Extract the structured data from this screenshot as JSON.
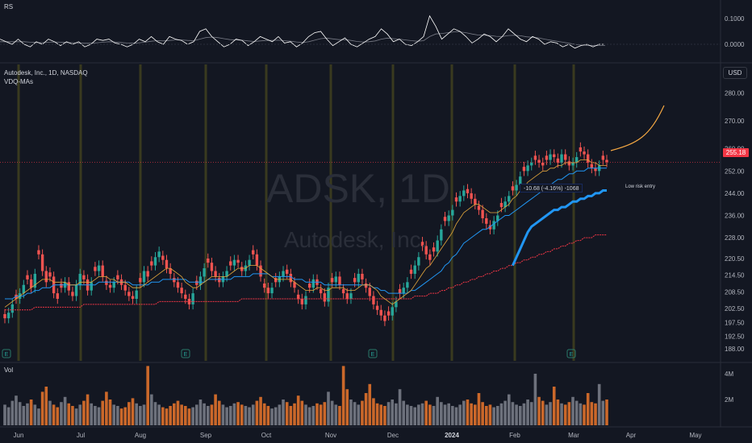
{
  "rs_pane": {
    "title": "RS",
    "ticks": [
      "0.1000",
      "0.0000"
    ],
    "values": [
      0.02,
      0.01,
      0.0,
      0.02,
      0.0,
      -0.01,
      0.01,
      0.0,
      0.02,
      0.01,
      -0.005,
      0.01,
      0.0,
      0.01,
      -0.01,
      0.0,
      0.02,
      0.015,
      0.02,
      0.005,
      0.0,
      -0.01,
      0.0,
      0.02,
      0.01,
      0.03,
      0.01,
      0.0,
      0.03,
      0.02,
      0.015,
      0.0,
      0.01,
      0.05,
      0.06,
      0.03,
      0.01,
      -0.01,
      0.0,
      0.02,
      0.015,
      -0.005,
      0.01,
      0.03,
      0.02,
      0.01,
      0.03,
      0.005,
      0.01,
      -0.01,
      0.005,
      0.03,
      0.045,
      0.05,
      0.02,
      -0.005,
      0.01,
      0.025,
      0.0,
      -0.01,
      0.005,
      0.02,
      0.03,
      0.06,
      0.04,
      0.01,
      0.02,
      0.0,
      -0.005,
      0.01,
      0.03,
      0.11,
      0.07,
      0.02,
      0.04,
      0.06,
      0.05,
      0.03,
      0.005,
      0.02,
      0.04,
      0.03,
      0.01,
      0.03,
      0.06,
      0.04,
      0.02,
      0.01,
      0.03,
      0.02,
      0.0,
      0.01,
      0.005,
      -0.01,
      0.0,
      -0.015,
      -0.005,
      0.0,
      -0.01,
      0.0,
      0.0
    ],
    "avg": [
      0.01,
      0.01,
      0.01,
      0.01,
      0.01,
      0.008,
      0.007,
      0.006,
      0.008,
      0.009,
      0.008,
      0.007,
      0.006,
      0.005,
      0.004,
      0.004,
      0.006,
      0.008,
      0.01,
      0.009,
      0.007,
      0.005,
      0.004,
      0.006,
      0.008,
      0.012,
      0.014,
      0.013,
      0.015,
      0.017,
      0.017,
      0.015,
      0.014,
      0.02,
      0.026,
      0.028,
      0.026,
      0.022,
      0.018,
      0.017,
      0.016,
      0.013,
      0.011,
      0.013,
      0.015,
      0.015,
      0.016,
      0.014,
      0.012,
      0.009,
      0.007,
      0.01,
      0.016,
      0.022,
      0.024,
      0.021,
      0.018,
      0.018,
      0.015,
      0.011,
      0.009,
      0.01,
      0.013,
      0.02,
      0.024,
      0.022,
      0.02,
      0.017,
      0.014,
      0.012,
      0.014,
      0.03,
      0.04,
      0.042,
      0.045,
      0.048,
      0.048,
      0.045,
      0.04,
      0.036,
      0.035,
      0.034,
      0.031,
      0.03,
      0.034,
      0.035,
      0.033,
      0.029,
      0.027,
      0.025,
      0.02,
      0.016,
      0.012,
      0.008,
      0.004,
      0.0,
      -0.003,
      -0.004,
      -0.005,
      -0.005,
      -0.005
    ]
  },
  "price_pane": {
    "symbol_line": "Autodesk, Inc., 1D, NASDAQ",
    "indicator": "VDQ-MAs",
    "currency": "USD",
    "last_price": "255.18",
    "price_ticks": [
      "280.00",
      "270.00",
      "260.00",
      "252.00",
      "244.00",
      "236.00",
      "228.00",
      "220.50",
      "214.50",
      "208.50",
      "202.50",
      "197.50",
      "192.50",
      "188.00"
    ],
    "measure_label": "-10.68 (-4.16%) -1068",
    "note": "Low risk entry",
    "watermark_symbol": "ADSK, 1D",
    "watermark_name": "Autodesk, Inc.",
    "earnings_markers": [
      "E",
      "E",
      "E",
      "E"
    ]
  },
  "volume_pane": {
    "title": "Vol",
    "ticks": [
      "4M",
      "2M"
    ]
  },
  "time_axis": {
    "labels": [
      "Jun",
      "Jul",
      "Aug",
      "Sep",
      "Oct",
      "Nov",
      "Dec",
      "2024",
      "Feb",
      "Mar",
      "Apr",
      "May"
    ]
  },
  "colors": {
    "background": "#131722",
    "up": "#26a69a",
    "down": "#ef5350",
    "vol_up": "#787b86",
    "vol_down": "#e0712b",
    "ma_fast": "#e6a83c",
    "ma_blue": "#2196f3",
    "ma_red": "#f23645",
    "projection": "#f5a843",
    "vline": "#4a4a1f"
  },
  "chart_data": {
    "type": "candlestick",
    "title": "Autodesk, Inc., 1D, NASDAQ",
    "ylim": [
      186,
      286
    ],
    "close": [
      199,
      201,
      204,
      206,
      208,
      211,
      213,
      210,
      215,
      222,
      216,
      212,
      214,
      208,
      206,
      210,
      212,
      209,
      207,
      211,
      215,
      213,
      209,
      212,
      216,
      218,
      214,
      211,
      210,
      212,
      213,
      211,
      209,
      207,
      206,
      209,
      212,
      216,
      214,
      218,
      221,
      223,
      220,
      217,
      215,
      212,
      210,
      208,
      206,
      204,
      208,
      211,
      214,
      217,
      219,
      216,
      214,
      212,
      214,
      216,
      218,
      220,
      219,
      216,
      218,
      220,
      222,
      218,
      214,
      210,
      208,
      210,
      212,
      214,
      216,
      215,
      212,
      210,
      206,
      204,
      207,
      210,
      213,
      211,
      208,
      205,
      210,
      212,
      214,
      211,
      208,
      206,
      208,
      212,
      215,
      213,
      210,
      207,
      204,
      202,
      200,
      198,
      200,
      203,
      205,
      208,
      210,
      212,
      215,
      218,
      221,
      225,
      222,
      220,
      223,
      227,
      231,
      234,
      236,
      238,
      241,
      243,
      245,
      244,
      242,
      240,
      238,
      235,
      233,
      231,
      234,
      236,
      239,
      241,
      243,
      245,
      247,
      250,
      252,
      254,
      255,
      256,
      255,
      254,
      256,
      258,
      257,
      255,
      258,
      256,
      254,
      255,
      257,
      259,
      258,
      255,
      253,
      252,
      254,
      256,
      255.18
    ],
    "vol_values": [
      1.6,
      1.4,
      1.9,
      2.3,
      1.8,
      1.5,
      1.7,
      2.0,
      1.6,
      1.3,
      2.6,
      3.0,
      1.9,
      1.6,
      1.4,
      1.8,
      2.2,
      1.7,
      1.5,
      1.3,
      1.6,
      1.9,
      2.4,
      1.7,
      1.5,
      1.4,
      1.9,
      2.6,
      2.0,
      1.6,
      1.5,
      1.3,
      1.4,
      1.8,
      2.1,
      1.7,
      1.5,
      1.6,
      4.6,
      2.4,
      1.8,
      1.6,
      1.4,
      1.3,
      1.5,
      1.7,
      1.9,
      1.6,
      1.5,
      1.3,
      1.4,
      1.6,
      2.0,
      1.7,
      1.5,
      1.6,
      2.4,
      1.9,
      1.6,
      1.4,
      1.5,
      1.7,
      1.8,
      1.6,
      1.5,
      1.4,
      1.6,
      1.9,
      2.2,
      1.7,
      1.5,
      1.3,
      1.4,
      1.6,
      2.0,
      1.8,
      1.5,
      1.7,
      2.3,
      1.9,
      1.6,
      1.4,
      1.5,
      1.7,
      1.6,
      1.8,
      2.6,
      1.9,
      1.6,
      1.5,
      4.6,
      2.8,
      2.0,
      1.8,
      1.6,
      1.9,
      2.5,
      3.2,
      2.1,
      1.7,
      1.6,
      1.5,
      1.8,
      2.0,
      1.7,
      2.8,
      1.9,
      1.6,
      1.5,
      1.4,
      1.6,
      1.7,
      1.9,
      1.6,
      1.5,
      2.2,
      1.8,
      1.6,
      1.7,
      1.5,
      1.4,
      1.6,
      1.9,
      2.0,
      1.7,
      1.6,
      2.5,
      1.8,
      1.5,
      1.6,
      1.4,
      1.5,
      1.7,
      1.9,
      2.4,
      1.8,
      1.6,
      1.5,
      1.7,
      2.0,
      1.8,
      4.0,
      2.2,
      1.9,
      1.6,
      1.8,
      3.0,
      2.0,
      1.7,
      1.6,
      1.8,
      2.2,
      1.9,
      1.7,
      1.6,
      2.5,
      1.8,
      1.7,
      3.2,
      1.9,
      2.0
    ],
    "ma_fast": [
      203,
      204,
      205,
      206,
      207,
      208,
      209,
      210,
      211,
      212,
      213,
      213,
      213,
      212,
      212,
      212,
      212,
      211,
      211,
      211,
      212,
      212,
      212,
      212,
      213,
      214,
      214,
      214,
      213,
      213,
      212,
      212,
      212,
      211,
      210,
      210,
      210,
      211,
      212,
      213,
      214,
      215,
      216,
      217,
      217,
      216,
      215,
      214,
      212,
      211,
      210,
      210,
      211,
      212,
      213,
      214,
      214,
      214,
      214,
      214,
      215,
      216,
      217,
      217,
      217,
      218,
      218,
      218,
      217,
      216,
      215,
      214,
      213,
      213,
      213,
      213,
      213,
      212,
      211,
      210,
      209,
      209,
      209,
      210,
      210,
      209,
      209,
      210,
      210,
      210,
      210,
      209,
      209,
      209,
      210,
      211,
      211,
      211,
      210,
      209,
      207,
      206,
      205,
      204,
      205,
      206,
      207,
      208,
      209,
      211,
      213,
      215,
      217,
      218,
      220,
      222,
      224,
      226,
      228,
      230,
      233,
      235,
      237,
      238,
      239,
      240,
      240,
      239,
      238,
      237,
      237,
      237,
      238,
      239,
      240,
      242,
      243,
      245,
      246,
      248,
      249,
      250,
      251,
      252,
      252,
      253,
      253,
      254,
      254,
      255,
      255,
      255,
      255,
      256,
      256,
      256,
      255,
      255,
      254,
      254,
      254
    ],
    "ma_blue": [
      206,
      206,
      206,
      207,
      207,
      207,
      208,
      208,
      209,
      209,
      210,
      210,
      210,
      211,
      211,
      211,
      211,
      211,
      211,
      211,
      211,
      211,
      211,
      211,
      211,
      212,
      212,
      212,
      212,
      212,
      212,
      212,
      212,
      212,
      211,
      211,
      211,
      211,
      211,
      212,
      212,
      212,
      213,
      213,
      213,
      213,
      213,
      213,
      213,
      212,
      212,
      212,
      212,
      212,
      213,
      213,
      213,
      213,
      213,
      213,
      213,
      214,
      214,
      214,
      214,
      214,
      215,
      215,
      215,
      215,
      215,
      214,
      214,
      214,
      214,
      214,
      214,
      213,
      213,
      213,
      212,
      212,
      212,
      212,
      212,
      211,
      211,
      211,
      211,
      211,
      211,
      211,
      211,
      211,
      211,
      211,
      211,
      211,
      210,
      210,
      209,
      209,
      208,
      208,
      208,
      208,
      208,
      208,
      209,
      209,
      210,
      211,
      212,
      213,
      214,
      215,
      216,
      218,
      219,
      221,
      222,
      224,
      226,
      227,
      228,
      229,
      230,
      231,
      231,
      232,
      233,
      234,
      235,
      236,
      236,
      237,
      238,
      239,
      240,
      241,
      242,
      243,
      244,
      245,
      246,
      247,
      248,
      249,
      249,
      250,
      251,
      251,
      252,
      252,
      252,
      253,
      253,
      253,
      253,
      253,
      253
    ],
    "ma_thick": [
      218,
      221,
      224,
      227,
      230,
      232,
      233,
      234,
      235,
      236,
      237,
      238,
      238,
      239,
      239,
      240,
      241,
      241,
      242,
      242,
      243,
      243,
      244,
      244,
      245,
      245
    ],
    "ma_red": [
      202,
      202,
      202,
      202,
      202,
      202,
      202,
      202,
      203,
      203,
      203,
      203,
      203,
      203,
      203,
      203,
      203,
      203,
      203,
      203,
      203,
      204,
      204,
      204,
      204,
      204,
      204,
      204,
      204,
      204,
      204,
      204,
      204,
      204,
      204,
      204,
      204,
      204,
      204,
      204,
      204,
      205,
      205,
      205,
      205,
      205,
      205,
      205,
      205,
      205,
      205,
      205,
      205,
      205,
      205,
      205,
      205,
      205,
      205,
      205,
      205,
      205,
      205,
      206,
      206,
      206,
      206,
      206,
      206,
      206,
      206,
      206,
      206,
      206,
      206,
      206,
      206,
      206,
      206,
      206,
      206,
      206,
      206,
      206,
      206,
      206,
      206,
      206,
      206,
      206,
      206,
      206,
      206,
      206,
      206,
      206,
      206,
      206,
      206,
      206,
      206,
      206,
      206,
      206,
      206,
      206,
      206,
      206,
      206,
      207,
      207,
      207,
      207,
      208,
      208,
      208,
      209,
      209,
      210,
      210,
      211,
      211,
      212,
      212,
      213,
      213,
      214,
      214,
      215,
      215,
      216,
      216,
      217,
      217,
      218,
      218,
      219,
      219,
      220,
      220,
      221,
      221,
      222,
      222,
      223,
      223,
      224,
      224,
      225,
      225,
      226,
      226,
      227,
      227,
      228,
      228,
      228,
      229,
      229,
      229,
      229
    ]
  }
}
